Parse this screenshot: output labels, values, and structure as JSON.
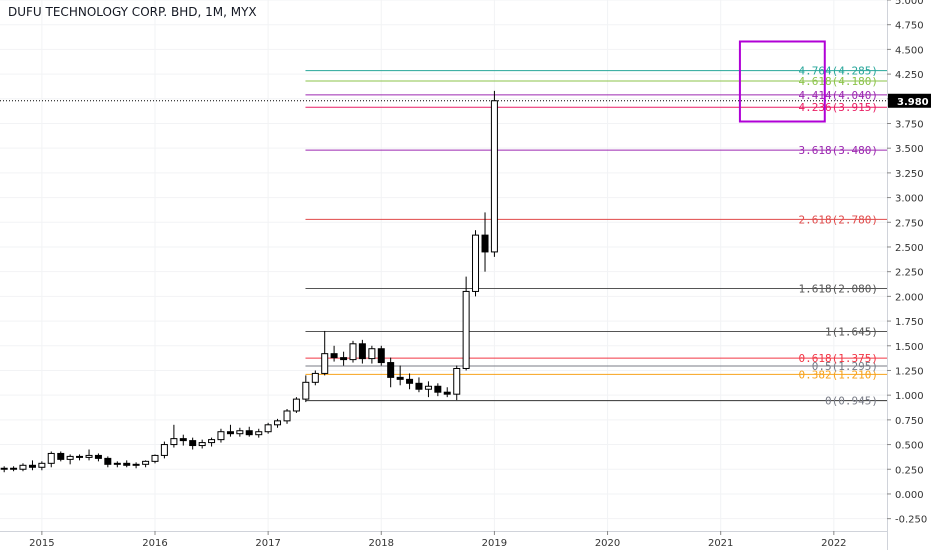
{
  "chart_data": {
    "type": "candlestick",
    "title": "DUFU TECHNOLOGY CORP. BHD, 1M, MYX",
    "ylim": [
      -0.375,
      5.0
    ],
    "yticks": [
      "5.000",
      "4.750",
      "4.500",
      "4.250",
      "4.000",
      "3.750",
      "3.500",
      "3.250",
      "3.000",
      "2.750",
      "2.500",
      "2.250",
      "2.000",
      "1.750",
      "1.500",
      "1.250",
      "1.000",
      "0.750",
      "0.500",
      "0.250",
      "0.000",
      "-0.250"
    ],
    "ytick_values": [
      5.0,
      4.75,
      4.5,
      4.25,
      4.0,
      3.75,
      3.5,
      3.25,
      3.0,
      2.75,
      2.5,
      2.25,
      2.0,
      1.75,
      1.5,
      1.25,
      1.0,
      0.75,
      0.5,
      0.25,
      0.0,
      -0.25
    ],
    "xlim": [
      2014.63,
      2022.47
    ],
    "xticks": [
      "2015",
      "2016",
      "2017",
      "2018",
      "2019",
      "2020",
      "2021",
      "2022"
    ],
    "xtick_values": [
      2015,
      2016,
      2017,
      2018,
      2019,
      2020,
      2021,
      2022
    ],
    "last_price": "3.980",
    "last_price_value": 3.98,
    "candles": [
      {
        "t": 2014.667,
        "o": 0.25,
        "h": 0.28,
        "l": 0.22,
        "c": 0.26
      },
      {
        "t": 2014.75,
        "o": 0.26,
        "h": 0.28,
        "l": 0.23,
        "c": 0.25
      },
      {
        "t": 2014.833,
        "o": 0.25,
        "h": 0.31,
        "l": 0.23,
        "c": 0.29
      },
      {
        "t": 2014.917,
        "o": 0.29,
        "h": 0.34,
        "l": 0.24,
        "c": 0.27
      },
      {
        "t": 2015.0,
        "o": 0.27,
        "h": 0.33,
        "l": 0.24,
        "c": 0.31
      },
      {
        "t": 2015.083,
        "o": 0.31,
        "h": 0.43,
        "l": 0.27,
        "c": 0.41
      },
      {
        "t": 2015.167,
        "o": 0.41,
        "h": 0.43,
        "l": 0.33,
        "c": 0.35
      },
      {
        "t": 2015.25,
        "o": 0.35,
        "h": 0.4,
        "l": 0.3,
        "c": 0.38
      },
      {
        "t": 2015.333,
        "o": 0.38,
        "h": 0.4,
        "l": 0.34,
        "c": 0.37
      },
      {
        "t": 2015.417,
        "o": 0.37,
        "h": 0.45,
        "l": 0.34,
        "c": 0.39
      },
      {
        "t": 2015.5,
        "o": 0.39,
        "h": 0.41,
        "l": 0.33,
        "c": 0.36
      },
      {
        "t": 2015.583,
        "o": 0.36,
        "h": 0.38,
        "l": 0.27,
        "c": 0.3
      },
      {
        "t": 2015.667,
        "o": 0.3,
        "h": 0.33,
        "l": 0.27,
        "c": 0.31
      },
      {
        "t": 2015.75,
        "o": 0.31,
        "h": 0.34,
        "l": 0.27,
        "c": 0.29
      },
      {
        "t": 2015.833,
        "o": 0.29,
        "h": 0.32,
        "l": 0.26,
        "c": 0.3
      },
      {
        "t": 2015.917,
        "o": 0.3,
        "h": 0.34,
        "l": 0.27,
        "c": 0.33
      },
      {
        "t": 2016.0,
        "o": 0.33,
        "h": 0.4,
        "l": 0.31,
        "c": 0.39
      },
      {
        "t": 2016.083,
        "o": 0.39,
        "h": 0.53,
        "l": 0.36,
        "c": 0.5
      },
      {
        "t": 2016.167,
        "o": 0.5,
        "h": 0.7,
        "l": 0.47,
        "c": 0.56
      },
      {
        "t": 2016.25,
        "o": 0.56,
        "h": 0.6,
        "l": 0.49,
        "c": 0.54
      },
      {
        "t": 2016.333,
        "o": 0.54,
        "h": 0.57,
        "l": 0.45,
        "c": 0.49
      },
      {
        "t": 2016.417,
        "o": 0.49,
        "h": 0.55,
        "l": 0.46,
        "c": 0.52
      },
      {
        "t": 2016.5,
        "o": 0.52,
        "h": 0.57,
        "l": 0.48,
        "c": 0.55
      },
      {
        "t": 2016.583,
        "o": 0.55,
        "h": 0.66,
        "l": 0.52,
        "c": 0.63
      },
      {
        "t": 2016.667,
        "o": 0.63,
        "h": 0.7,
        "l": 0.58,
        "c": 0.61
      },
      {
        "t": 2016.75,
        "o": 0.61,
        "h": 0.67,
        "l": 0.58,
        "c": 0.64
      },
      {
        "t": 2016.833,
        "o": 0.64,
        "h": 0.68,
        "l": 0.58,
        "c": 0.6
      },
      {
        "t": 2016.917,
        "o": 0.6,
        "h": 0.66,
        "l": 0.57,
        "c": 0.63
      },
      {
        "t": 2017.0,
        "o": 0.63,
        "h": 0.72,
        "l": 0.61,
        "c": 0.7
      },
      {
        "t": 2017.083,
        "o": 0.7,
        "h": 0.76,
        "l": 0.67,
        "c": 0.74
      },
      {
        "t": 2017.167,
        "o": 0.74,
        "h": 0.86,
        "l": 0.71,
        "c": 0.84
      },
      {
        "t": 2017.25,
        "o": 0.84,
        "h": 0.98,
        "l": 0.82,
        "c": 0.96
      },
      {
        "t": 2017.333,
        "o": 0.96,
        "h": 1.2,
        "l": 0.93,
        "c": 1.13
      },
      {
        "t": 2017.417,
        "o": 1.13,
        "h": 1.25,
        "l": 1.1,
        "c": 1.22
      },
      {
        "t": 2017.5,
        "o": 1.22,
        "h": 1.65,
        "l": 1.2,
        "c": 1.42
      },
      {
        "t": 2017.583,
        "o": 1.42,
        "h": 1.5,
        "l": 1.34,
        "c": 1.38
      },
      {
        "t": 2017.667,
        "o": 1.38,
        "h": 1.44,
        "l": 1.3,
        "c": 1.36
      },
      {
        "t": 2017.75,
        "o": 1.36,
        "h": 1.55,
        "l": 1.33,
        "c": 1.52
      },
      {
        "t": 2017.833,
        "o": 1.52,
        "h": 1.56,
        "l": 1.32,
        "c": 1.37
      },
      {
        "t": 2017.917,
        "o": 1.37,
        "h": 1.5,
        "l": 1.32,
        "c": 1.47
      },
      {
        "t": 2018.0,
        "o": 1.47,
        "h": 1.5,
        "l": 1.3,
        "c": 1.33
      },
      {
        "t": 2018.083,
        "o": 1.33,
        "h": 1.38,
        "l": 1.08,
        "c": 1.18
      },
      {
        "t": 2018.167,
        "o": 1.18,
        "h": 1.3,
        "l": 1.1,
        "c": 1.16
      },
      {
        "t": 2018.25,
        "o": 1.16,
        "h": 1.22,
        "l": 1.06,
        "c": 1.12
      },
      {
        "t": 2018.333,
        "o": 1.12,
        "h": 1.18,
        "l": 1.03,
        "c": 1.06
      },
      {
        "t": 2018.417,
        "o": 1.06,
        "h": 1.14,
        "l": 0.98,
        "c": 1.09
      },
      {
        "t": 2018.5,
        "o": 1.09,
        "h": 1.12,
        "l": 0.99,
        "c": 1.03
      },
      {
        "t": 2018.583,
        "o": 1.03,
        "h": 1.08,
        "l": 0.98,
        "c": 1.01
      },
      {
        "t": 2018.667,
        "o": 1.01,
        "h": 1.3,
        "l": 0.95,
        "c": 1.27
      },
      {
        "t": 2018.75,
        "o": 1.27,
        "h": 2.2,
        "l": 1.25,
        "c": 2.05
      },
      {
        "t": 2018.833,
        "o": 2.05,
        "h": 2.67,
        "l": 2.0,
        "c": 2.62
      },
      {
        "t": 2018.917,
        "o": 2.62,
        "h": 2.85,
        "l": 2.25,
        "c": 2.45
      },
      {
        "t": 2019.0,
        "o": 2.45,
        "h": 4.08,
        "l": 2.4,
        "c": 3.98
      }
    ],
    "fib_levels": [
      {
        "label": "0(0.945)",
        "value": 0.945,
        "color": "#787b86",
        "line": "#333333"
      },
      {
        "label": "0.382(1.210)",
        "value": 1.21,
        "color": "#f7a21b",
        "line": "#f7a21b"
      },
      {
        "label": "0.5(1.295)",
        "value": 1.295,
        "color": "#787b86",
        "line": "#787b86"
      },
      {
        "label": "0.618(1.375)",
        "value": 1.375,
        "color": "#f23645",
        "line": "#f23645"
      },
      {
        "label": "1(1.645)",
        "value": 1.645,
        "color": "#555555",
        "line": "#555555"
      },
      {
        "label": "1.618(2.080)",
        "value": 2.08,
        "color": "#555555",
        "line": "#555555"
      },
      {
        "label": "2.618(2.780)",
        "value": 2.78,
        "color": "#e04a4a",
        "line": "#e04a4a"
      },
      {
        "label": "3.618(3.480)",
        "value": 3.48,
        "color": "#9c27b0",
        "line": "#9c27b0"
      },
      {
        "label": "4.236(3.915)",
        "value": 3.915,
        "color": "#e91e63",
        "line": "#e91e63"
      },
      {
        "label": "4.414(4.040)",
        "value": 4.04,
        "color": "#9c27b0",
        "line": "#9c27b0"
      },
      {
        "label": "4.618(4.180)",
        "value": 4.18,
        "color": "#8bc34a",
        "line": "#8bc34a"
      },
      {
        "label": "4.764(4.285)",
        "value": 4.285,
        "color": "#26a69a",
        "line": "#26a69a"
      }
    ],
    "highlight_box": {
      "x0": 2021.17,
      "x1": 2021.92,
      "y0": 3.77,
      "y1": 4.58,
      "color": "#b000d6"
    },
    "fib_start": 2017.33,
    "grid": true,
    "colors": {
      "up": "#ffffff",
      "down": "#000000",
      "outline": "#000000",
      "axis": "#d0d3da",
      "grid": "#f2f3f5"
    }
  }
}
